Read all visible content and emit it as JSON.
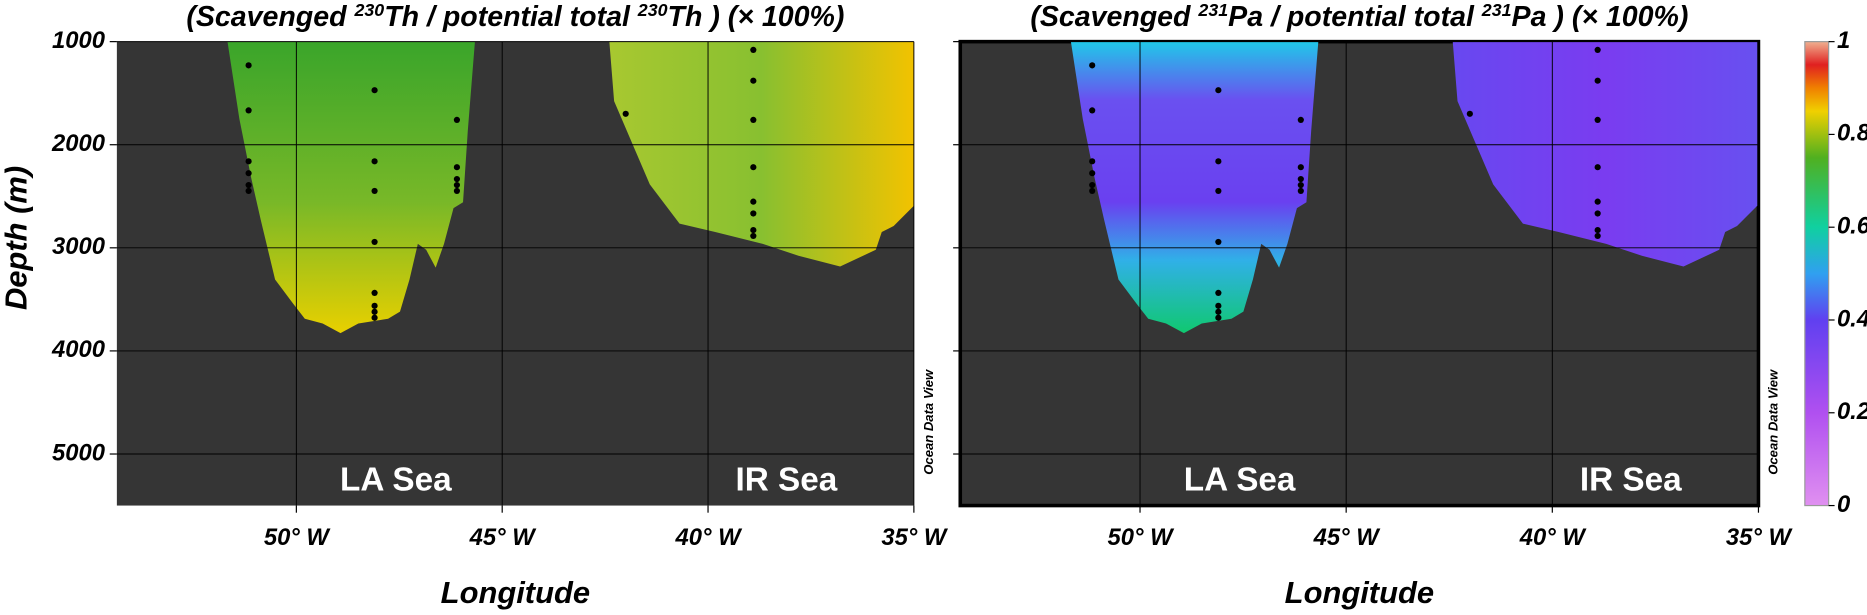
{
  "chart_data": [
    {
      "type": "scatter",
      "title": [
        "(Scavenged ",
        "230",
        "Th / potential total ",
        "230",
        "Th ) (× 100%)"
      ],
      "xlabel": "Longitude",
      "ylabel": "Depth (m)",
      "annotations": [
        "LA Sea",
        "IR Sea"
      ],
      "watermark": "Ocean Data View",
      "xlim": [
        -54.36,
        -35
      ],
      "ylim": [
        5500,
        1000
      ],
      "xticks": [
        {
          "value": -50,
          "label": "50° W"
        },
        {
          "value": -45,
          "label": "45° W"
        },
        {
          "value": -40,
          "label": "40° W"
        },
        {
          "value": -35,
          "label": "35° W"
        }
      ],
      "yticks": [
        1000,
        2000,
        3000,
        4000,
        5000
      ],
      "ytick_labels": true,
      "grid": true,
      "color": "#000000",
      "x": [
        -51.16,
        -51.16,
        -51.16,
        -51.16,
        -51.16,
        -51.16,
        -48.1,
        -48.1,
        -48.1,
        -48.1,
        -48.1,
        -48.1,
        -48.1,
        -48.1,
        -46.1,
        -46.1,
        -46.1,
        -46.1,
        -46.1,
        -42.0,
        -38.9,
        -38.9,
        -38.9,
        -38.9,
        -38.9,
        -38.9,
        -38.9,
        -38.9
      ],
      "y": [
        1230,
        1667,
        2161,
        2276,
        2391,
        2448,
        1471,
        2161,
        2448,
        2943,
        3437,
        3563,
        3621,
        3678,
        1759,
        2218,
        2333,
        2391,
        2448,
        1700,
        1080,
        1379,
        1759,
        2218,
        2552,
        2667,
        2828,
        2885
      ]
    },
    {
      "type": "scatter",
      "title": [
        "(Scavenged ",
        "231",
        "Pa / potential total ",
        "231",
        "Pa ) (× 100%)"
      ],
      "xlabel": "Longitude",
      "annotations": [
        "LA Sea",
        "IR Sea"
      ],
      "watermark": "Ocean Data View",
      "xlim": [
        -54.36,
        -35
      ],
      "ylim": [
        5500,
        1000
      ],
      "xticks": [
        {
          "value": -50,
          "label": "50° W"
        },
        {
          "value": -45,
          "label": "45° W"
        },
        {
          "value": -40,
          "label": "40° W"
        },
        {
          "value": -35,
          "label": "35° W"
        }
      ],
      "yticks": [
        1000,
        2000,
        3000,
        4000,
        5000
      ],
      "ytick_labels": false,
      "grid": true,
      "color": "#000000",
      "x": [
        -51.16,
        -51.16,
        -51.16,
        -51.16,
        -51.16,
        -51.16,
        -48.1,
        -48.1,
        -48.1,
        -48.1,
        -48.1,
        -48.1,
        -48.1,
        -48.1,
        -46.1,
        -46.1,
        -46.1,
        -46.1,
        -46.1,
        -42.0,
        -38.9,
        -38.9,
        -38.9,
        -38.9,
        -38.9,
        -38.9,
        -38.9,
        -38.9
      ],
      "y": [
        1230,
        1667,
        2161,
        2276,
        2391,
        2448,
        1471,
        2161,
        2448,
        2943,
        3437,
        3563,
        3621,
        3678,
        1759,
        2218,
        2333,
        2391,
        2448,
        1700,
        1080,
        1379,
        1759,
        2218,
        2552,
        2667,
        2828,
        2885
      ]
    },
    {
      "type": "colorbar",
      "ylim": [
        0,
        1
      ],
      "yticks": [
        0,
        0.2,
        0.4,
        0.6,
        0.8,
        1
      ]
    }
  ]
}
